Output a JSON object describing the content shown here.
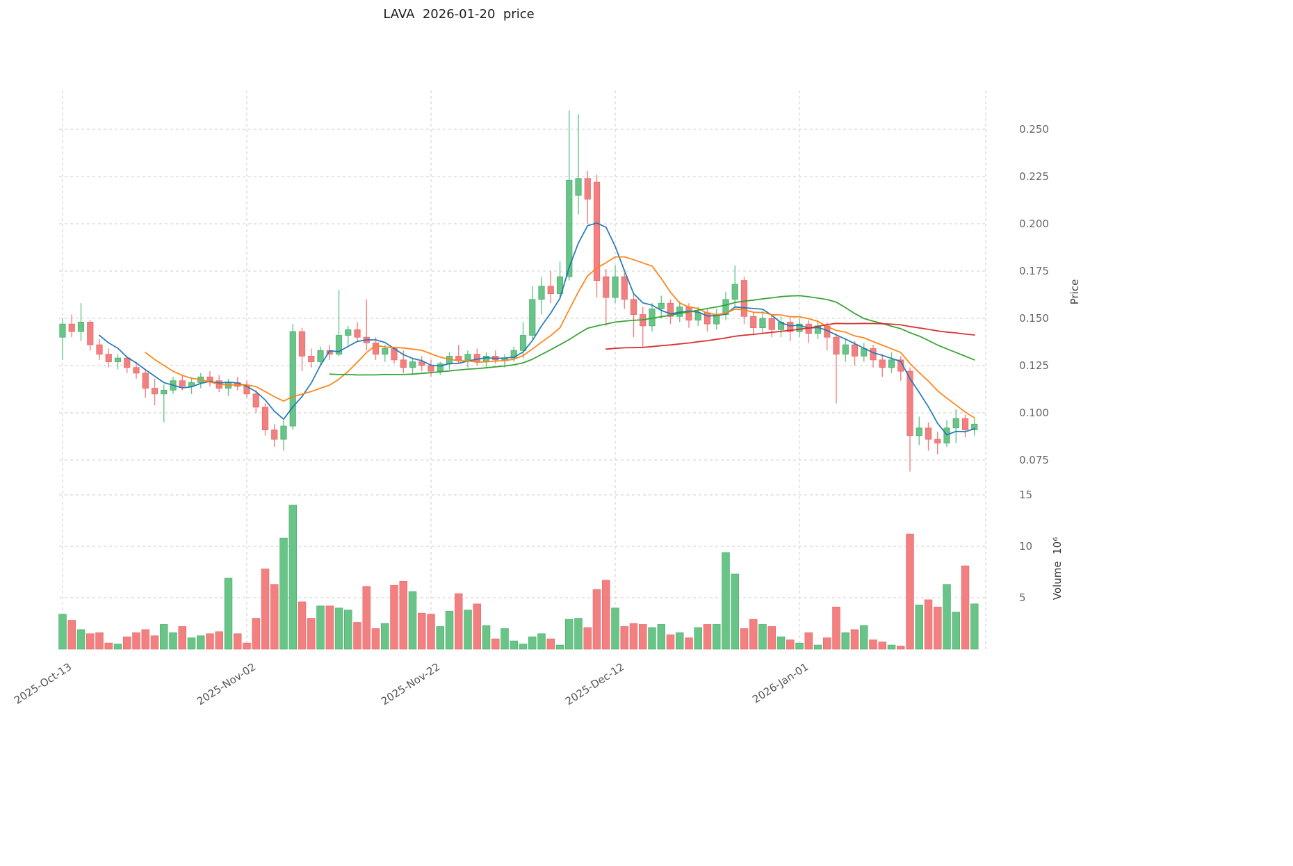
{
  "title": "LAVA  2026-01-20  price",
  "chart_data": {
    "type": "candlestick",
    "title": "LAVA  2026-01-20  price",
    "ylabel_price": "Price",
    "ylabel_volume": "Volume  10⁶",
    "legend_position": "none",
    "grid": true,
    "up_color": "#68c587",
    "down_color": "#f38080",
    "up_edge_color": "#4daf6e",
    "down_edge_color": "#e76a6a",
    "price_ticks": [
      0.075,
      0.1,
      0.125,
      0.15,
      0.175,
      0.2,
      0.225,
      0.25
    ],
    "price_axis_range": [
      0.0684,
      0.2706
    ],
    "volume_ticks": [
      5,
      10,
      15
    ],
    "volume_axis_range": [
      0,
      15.8
    ],
    "x_tick_labels": [
      "2025-Oct-13",
      "2025-Nov-02",
      "2025-Nov-22",
      "2025-Dec-12",
      "2026-Jan-01"
    ],
    "x_tick_indices": [
      0,
      20,
      40,
      60,
      80
    ],
    "ma_lines": [
      {
        "name": "ma-5",
        "period": 5,
        "color": "#1f77b4"
      },
      {
        "name": "ma-10",
        "period": 10,
        "color": "#ff7f0e"
      },
      {
        "name": "ma-30",
        "period": 30,
        "color": "#2ca02c"
      },
      {
        "name": "ma-60",
        "period": 60,
        "color": "#d62728"
      }
    ],
    "dates": [
      "2025-10-13",
      "2025-10-14",
      "2025-10-15",
      "2025-10-16",
      "2025-10-17",
      "2025-10-18",
      "2025-10-19",
      "2025-10-20",
      "2025-10-21",
      "2025-10-22",
      "2025-10-23",
      "2025-10-24",
      "2025-10-25",
      "2025-10-26",
      "2025-10-27",
      "2025-10-28",
      "2025-10-29",
      "2025-10-30",
      "2025-10-31",
      "2025-11-01",
      "2025-11-02",
      "2025-11-03",
      "2025-11-04",
      "2025-11-05",
      "2025-11-06",
      "2025-11-07",
      "2025-11-08",
      "2025-11-09",
      "2025-11-10",
      "2025-11-11",
      "2025-11-12",
      "2025-11-13",
      "2025-11-14",
      "2025-11-15",
      "2025-11-16",
      "2025-11-17",
      "2025-11-18",
      "2025-11-19",
      "2025-11-20",
      "2025-11-21",
      "2025-11-22",
      "2025-11-23",
      "2025-11-24",
      "2025-11-25",
      "2025-11-26",
      "2025-11-27",
      "2025-11-28",
      "2025-11-29",
      "2025-11-30",
      "2025-12-01",
      "2025-12-02",
      "2025-12-03",
      "2025-12-04",
      "2025-12-05",
      "2025-12-06",
      "2025-12-07",
      "2025-12-08",
      "2025-12-09",
      "2025-12-10",
      "2025-12-11",
      "2025-12-12",
      "2025-12-13",
      "2025-12-14",
      "2025-12-15",
      "2025-12-16",
      "2025-12-17",
      "2025-12-18",
      "2025-12-19",
      "2025-12-20",
      "2025-12-21",
      "2025-12-22",
      "2025-12-23",
      "2025-12-24",
      "2025-12-25",
      "2025-12-26",
      "2025-12-27",
      "2025-12-28",
      "2025-12-29",
      "2025-12-30",
      "2025-12-31",
      "2026-01-01",
      "2026-01-02",
      "2026-01-03",
      "2026-01-04",
      "2026-01-05",
      "2026-01-06",
      "2026-01-07",
      "2026-01-08",
      "2026-01-09",
      "2026-01-10",
      "2026-01-11",
      "2026-01-12",
      "2026-01-13",
      "2026-01-14",
      "2026-01-15",
      "2026-01-16",
      "2026-01-17",
      "2026-01-18",
      "2026-01-19",
      "2026-01-20"
    ],
    "open": [
      0.14,
      0.147,
      0.143,
      0.148,
      0.136,
      0.131,
      0.127,
      0.129,
      0.124,
      0.121,
      0.113,
      0.11,
      0.112,
      0.117,
      0.114,
      0.116,
      0.119,
      0.117,
      0.113,
      0.116,
      0.114,
      0.11,
      0.103,
      0.091,
      0.086,
      0.093,
      0.143,
      0.13,
      0.127,
      0.133,
      0.131,
      0.141,
      0.144,
      0.14,
      0.137,
      0.131,
      0.134,
      0.128,
      0.124,
      0.127,
      0.125,
      0.122,
      0.126,
      0.13,
      0.128,
      0.131,
      0.127,
      0.13,
      0.128,
      0.129,
      0.133,
      0.141,
      0.16,
      0.167,
      0.163,
      0.172,
      0.215,
      0.224,
      0.222,
      0.172,
      0.161,
      0.172,
      0.16,
      0.152,
      0.146,
      0.155,
      0.158,
      0.151,
      0.156,
      0.149,
      0.153,
      0.147,
      0.152,
      0.16,
      0.17,
      0.151,
      0.145,
      0.15,
      0.144,
      0.148,
      0.143,
      0.147,
      0.142,
      0.146,
      0.14,
      0.131,
      0.136,
      0.13,
      0.134,
      0.128,
      0.124,
      0.128,
      0.122,
      0.088,
      0.092,
      0.086,
      0.084,
      0.092,
      0.097,
      0.091
    ],
    "high": [
      0.15,
      0.152,
      0.158,
      0.149,
      0.139,
      0.134,
      0.131,
      0.13,
      0.127,
      0.123,
      0.118,
      0.115,
      0.119,
      0.12,
      0.118,
      0.121,
      0.122,
      0.12,
      0.118,
      0.119,
      0.117,
      0.112,
      0.105,
      0.094,
      0.096,
      0.147,
      0.145,
      0.134,
      0.135,
      0.136,
      0.165,
      0.146,
      0.148,
      0.16,
      0.14,
      0.136,
      0.135,
      0.133,
      0.129,
      0.13,
      0.128,
      0.127,
      0.132,
      0.136,
      0.133,
      0.134,
      0.132,
      0.133,
      0.131,
      0.135,
      0.148,
      0.167,
      0.172,
      0.175,
      0.18,
      0.26,
      0.258,
      0.228,
      0.226,
      0.176,
      0.178,
      0.174,
      0.163,
      0.156,
      0.158,
      0.162,
      0.16,
      0.159,
      0.158,
      0.156,
      0.155,
      0.155,
      0.164,
      0.178,
      0.172,
      0.153,
      0.154,
      0.152,
      0.151,
      0.15,
      0.15,
      0.149,
      0.149,
      0.148,
      0.142,
      0.139,
      0.138,
      0.137,
      0.136,
      0.131,
      0.132,
      0.13,
      0.124,
      0.098,
      0.095,
      0.09,
      0.096,
      0.102,
      0.099,
      0.097
    ],
    "low": [
      0.128,
      0.14,
      0.138,
      0.133,
      0.128,
      0.124,
      0.123,
      0.121,
      0.118,
      0.108,
      0.104,
      0.095,
      0.11,
      0.112,
      0.11,
      0.113,
      0.114,
      0.111,
      0.109,
      0.112,
      0.108,
      0.1,
      0.088,
      0.082,
      0.08,
      0.091,
      0.122,
      0.124,
      0.125,
      0.128,
      0.13,
      0.136,
      0.138,
      0.133,
      0.128,
      0.127,
      0.126,
      0.121,
      0.12,
      0.122,
      0.119,
      0.12,
      0.123,
      0.126,
      0.124,
      0.125,
      0.124,
      0.126,
      0.124,
      0.127,
      0.129,
      0.139,
      0.152,
      0.158,
      0.161,
      0.17,
      0.205,
      0.2,
      0.161,
      0.146,
      0.158,
      0.155,
      0.14,
      0.135,
      0.143,
      0.15,
      0.147,
      0.148,
      0.145,
      0.146,
      0.143,
      0.144,
      0.149,
      0.156,
      0.147,
      0.141,
      0.142,
      0.14,
      0.14,
      0.138,
      0.14,
      0.137,
      0.139,
      0.133,
      0.105,
      0.127,
      0.125,
      0.127,
      0.124,
      0.119,
      0.121,
      0.117,
      0.069,
      0.083,
      0.08,
      0.078,
      0.082,
      0.084,
      0.087,
      0.088
    ],
    "close": [
      0.147,
      0.143,
      0.148,
      0.136,
      0.131,
      0.127,
      0.129,
      0.124,
      0.121,
      0.113,
      0.11,
      0.112,
      0.117,
      0.114,
      0.116,
      0.119,
      0.117,
      0.113,
      0.116,
      0.114,
      0.11,
      0.103,
      0.091,
      0.086,
      0.093,
      0.143,
      0.13,
      0.127,
      0.133,
      0.131,
      0.141,
      0.144,
      0.14,
      0.137,
      0.131,
      0.134,
      0.128,
      0.124,
      0.127,
      0.125,
      0.122,
      0.126,
      0.13,
      0.128,
      0.131,
      0.127,
      0.13,
      0.128,
      0.129,
      0.133,
      0.141,
      0.16,
      0.167,
      0.163,
      0.172,
      0.223,
      0.224,
      0.213,
      0.17,
      0.161,
      0.172,
      0.16,
      0.152,
      0.146,
      0.155,
      0.158,
      0.151,
      0.156,
      0.149,
      0.153,
      0.147,
      0.152,
      0.16,
      0.168,
      0.151,
      0.145,
      0.15,
      0.144,
      0.148,
      0.143,
      0.147,
      0.142,
      0.146,
      0.14,
      0.131,
      0.136,
      0.13,
      0.134,
      0.128,
      0.124,
      0.128,
      0.122,
      0.088,
      0.092,
      0.086,
      0.084,
      0.092,
      0.097,
      0.091,
      0.094
    ],
    "volume": [
      3.4,
      2.8,
      1.9,
      1.5,
      1.6,
      0.6,
      0.5,
      1.2,
      1.6,
      1.9,
      1.3,
      2.4,
      1.6,
      2.2,
      1.1,
      1.3,
      1.5,
      1.7,
      6.9,
      1.5,
      0.6,
      3.0,
      7.8,
      6.3,
      10.8,
      14.0,
      4.6,
      3.0,
      4.2,
      4.2,
      4.0,
      3.8,
      2.6,
      6.1,
      2.0,
      2.5,
      6.2,
      6.6,
      5.6,
      3.5,
      3.4,
      2.2,
      3.7,
      5.4,
      3.8,
      4.4,
      2.3,
      1.0,
      2.0,
      0.8,
      0.5,
      1.2,
      1.5,
      1.0,
      0.4,
      2.9,
      3.0,
      2.1,
      5.8,
      6.7,
      4.0,
      2.2,
      2.5,
      2.4,
      2.1,
      2.4,
      1.4,
      1.6,
      1.1,
      2.1,
      2.4,
      2.4,
      9.4,
      7.3,
      2.0,
      2.9,
      2.4,
      2.2,
      1.2,
      0.9,
      0.6,
      1.6,
      0.4,
      1.1,
      4.1,
      1.6,
      1.9,
      2.3,
      0.9,
      0.7,
      0.4,
      0.3,
      11.2,
      4.3,
      4.8,
      4.1,
      6.3,
      3.6,
      8.1,
      4.4
    ]
  }
}
